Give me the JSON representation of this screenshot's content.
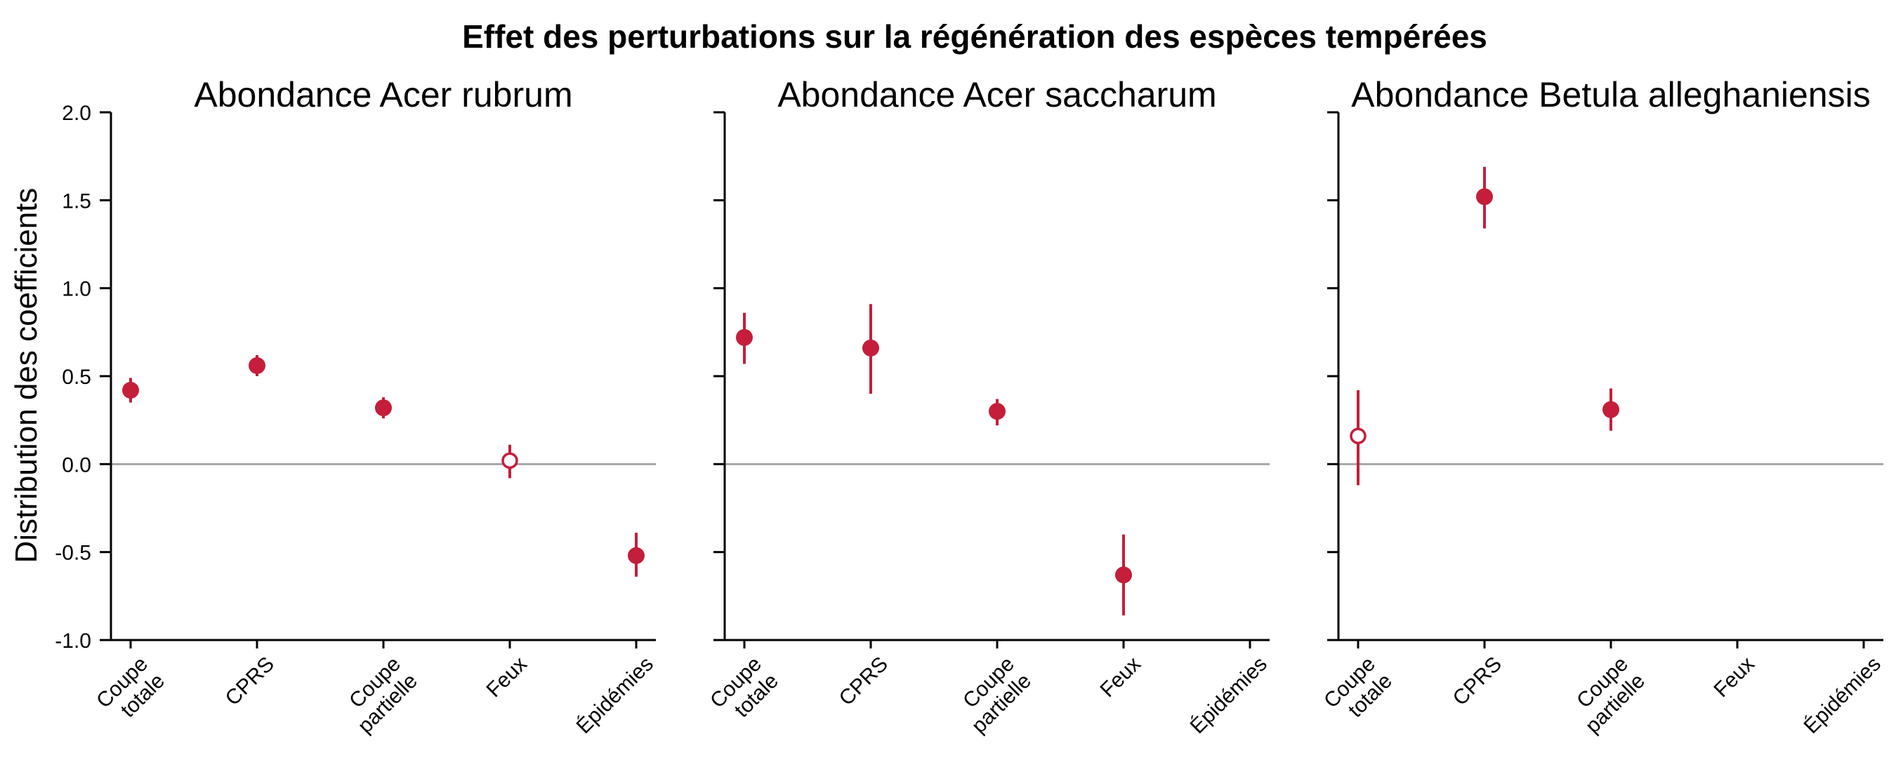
{
  "colors": {
    "accent": "#c41e3a",
    "zero_line": "#999999",
    "axis": "#000000"
  },
  "chart_data": {
    "type": "scatter",
    "title": "Effet des perturbations sur la régénération des espèces tempérées",
    "ylabel": "Distribution des coefficients",
    "ylim": [
      -1.0,
      2.0
    ],
    "yticks": [
      2.0,
      1.5,
      1.0,
      0.5,
      0.0,
      -0.5,
      -1.0
    ],
    "ytick_labels": [
      "2.0",
      "1.5",
      "1.0",
      "0.5",
      "0.0",
      "-0.5",
      "-1.0"
    ],
    "reference_line": 0.0,
    "categories": [
      [
        "Coupe",
        "totale"
      ],
      [
        "CPRS"
      ],
      [
        "Coupe",
        "partielle"
      ],
      [
        "Feux"
      ],
      [
        "Épidémies"
      ]
    ],
    "panels": [
      {
        "title": "Abondance Acer rubrum",
        "points": [
          {
            "category": 0,
            "value": 0.42,
            "low": 0.35,
            "high": 0.49,
            "filled": true
          },
          {
            "category": 1,
            "value": 0.56,
            "low": 0.5,
            "high": 0.62,
            "filled": true
          },
          {
            "category": 2,
            "value": 0.32,
            "low": 0.26,
            "high": 0.38,
            "filled": true
          },
          {
            "category": 3,
            "value": 0.02,
            "low": -0.08,
            "high": 0.11,
            "filled": false
          },
          {
            "category": 4,
            "value": -0.52,
            "low": -0.64,
            "high": -0.39,
            "filled": true
          }
        ]
      },
      {
        "title": "Abondance Acer saccharum",
        "points": [
          {
            "category": 0,
            "value": 0.72,
            "low": 0.57,
            "high": 0.86,
            "filled": true
          },
          {
            "category": 1,
            "value": 0.66,
            "low": 0.4,
            "high": 0.91,
            "filled": true
          },
          {
            "category": 2,
            "value": 0.3,
            "low": 0.22,
            "high": 0.37,
            "filled": true
          },
          {
            "category": 3,
            "value": -0.63,
            "low": -0.86,
            "high": -0.4,
            "filled": true
          }
        ]
      },
      {
        "title": "Abondance Betula alleghaniensis",
        "points": [
          {
            "category": 0,
            "value": 0.16,
            "low": -0.12,
            "high": 0.42,
            "filled": false
          },
          {
            "category": 1,
            "value": 1.52,
            "low": 1.34,
            "high": 1.69,
            "filled": true
          },
          {
            "category": 2,
            "value": 0.31,
            "low": 0.19,
            "high": 0.43,
            "filled": true
          }
        ]
      }
    ]
  }
}
